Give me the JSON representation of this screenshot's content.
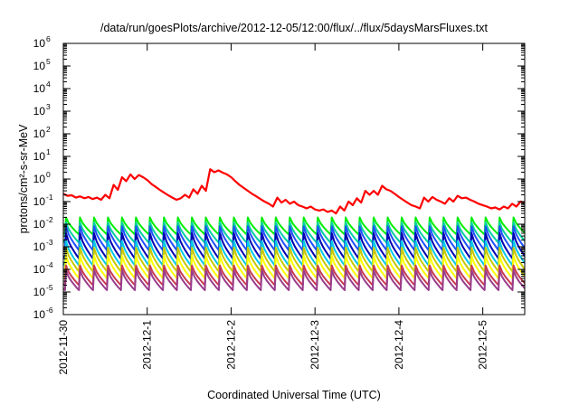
{
  "chart_data": {
    "type": "line",
    "title": "/data/run/goesPlots/archive/2012-12-05/12:00/flux/../flux/5daysMarsFluxes.txt",
    "xlabel": "Coordinated Universal Time (UTC)",
    "ylabel": "protons/cm²-s-sr-MeV",
    "yscale": "log",
    "ylim_exp": [
      -6,
      6
    ],
    "y_tick_exponents": [
      -6,
      -5,
      -4,
      -3,
      -2,
      -1,
      0,
      1,
      2,
      3,
      4,
      5,
      6
    ],
    "y_tick_base": "10",
    "xlim_days": [
      0,
      5.5
    ],
    "x_ticks": [
      {
        "day": 0,
        "label": "2012-11-30"
      },
      {
        "day": 1,
        "label": "2012-12-1"
      },
      {
        "day": 2,
        "label": "2012-12-2"
      },
      {
        "day": 3,
        "label": "2012-12-3"
      },
      {
        "day": 4,
        "label": "2012-12-4"
      },
      {
        "day": 5,
        "label": "2012-12-5"
      }
    ],
    "grid": false,
    "legend": "none",
    "sawtooth": {
      "period_days": 0.1667,
      "start_phase_days": 0.02
    },
    "series": [
      {
        "color": "#ff0000",
        "kind": "envelope",
        "points": [
          [
            0,
            0.22
          ],
          [
            0.05,
            0.18
          ],
          [
            0.1,
            0.19
          ],
          [
            0.15,
            0.15
          ],
          [
            0.2,
            0.17
          ],
          [
            0.25,
            0.14
          ],
          [
            0.3,
            0.16
          ],
          [
            0.35,
            0.13
          ],
          [
            0.4,
            0.15
          ],
          [
            0.45,
            0.12
          ],
          [
            0.5,
            0.2
          ],
          [
            0.55,
            0.14
          ],
          [
            0.6,
            0.55
          ],
          [
            0.65,
            0.33
          ],
          [
            0.7,
            1.2
          ],
          [
            0.75,
            0.8
          ],
          [
            0.8,
            1.6
          ],
          [
            0.85,
            1.0
          ],
          [
            0.9,
            1.5
          ],
          [
            0.95,
            1.2
          ],
          [
            1.0,
            0.9
          ],
          [
            1.05,
            0.6
          ],
          [
            1.1,
            0.45
          ],
          [
            1.15,
            0.33
          ],
          [
            1.2,
            0.25
          ],
          [
            1.25,
            0.19
          ],
          [
            1.3,
            0.15
          ],
          [
            1.35,
            0.12
          ],
          [
            1.4,
            0.14
          ],
          [
            1.45,
            0.2
          ],
          [
            1.5,
            0.15
          ],
          [
            1.55,
            0.35
          ],
          [
            1.6,
            0.22
          ],
          [
            1.65,
            0.5
          ],
          [
            1.7,
            0.3
          ],
          [
            1.75,
            2.7
          ],
          [
            1.8,
            2.0
          ],
          [
            1.85,
            2.4
          ],
          [
            1.9,
            1.9
          ],
          [
            1.95,
            1.6
          ],
          [
            2.0,
            1.2
          ],
          [
            2.05,
            0.8
          ],
          [
            2.1,
            0.55
          ],
          [
            2.15,
            0.4
          ],
          [
            2.2,
            0.3
          ],
          [
            2.25,
            0.22
          ],
          [
            2.3,
            0.17
          ],
          [
            2.35,
            0.13
          ],
          [
            2.4,
            0.1
          ],
          [
            2.45,
            0.08
          ],
          [
            2.5,
            0.06
          ],
          [
            2.55,
            0.15
          ],
          [
            2.6,
            0.09
          ],
          [
            2.65,
            0.12
          ],
          [
            2.7,
            0.08
          ],
          [
            2.75,
            0.1
          ],
          [
            2.8,
            0.07
          ],
          [
            2.85,
            0.06
          ],
          [
            2.9,
            0.05
          ],
          [
            2.95,
            0.06
          ],
          [
            3.0,
            0.045
          ],
          [
            3.05,
            0.04
          ],
          [
            3.1,
            0.045
          ],
          [
            3.15,
            0.035
          ],
          [
            3.2,
            0.04
          ],
          [
            3.25,
            0.03
          ],
          [
            3.3,
            0.06
          ],
          [
            3.35,
            0.04
          ],
          [
            3.4,
            0.1
          ],
          [
            3.45,
            0.07
          ],
          [
            3.5,
            0.14
          ],
          [
            3.55,
            0.09
          ],
          [
            3.6,
            0.3
          ],
          [
            3.65,
            0.2
          ],
          [
            3.7,
            0.3
          ],
          [
            3.75,
            0.2
          ],
          [
            3.8,
            0.5
          ],
          [
            3.85,
            0.35
          ],
          [
            3.9,
            0.3
          ],
          [
            3.95,
            0.22
          ],
          [
            4.0,
            0.16
          ],
          [
            4.05,
            0.12
          ],
          [
            4.1,
            0.09
          ],
          [
            4.15,
            0.07
          ],
          [
            4.2,
            0.06
          ],
          [
            4.25,
            0.05
          ],
          [
            4.3,
            0.15
          ],
          [
            4.35,
            0.1
          ],
          [
            4.4,
            0.16
          ],
          [
            4.45,
            0.12
          ],
          [
            4.5,
            0.1
          ],
          [
            4.55,
            0.08
          ],
          [
            4.6,
            0.14
          ],
          [
            4.65,
            0.1
          ],
          [
            4.7,
            0.18
          ],
          [
            4.75,
            0.14
          ],
          [
            4.8,
            0.15
          ],
          [
            4.85,
            0.12
          ],
          [
            4.9,
            0.1
          ],
          [
            4.95,
            0.08
          ],
          [
            5.0,
            0.07
          ],
          [
            5.05,
            0.06
          ],
          [
            5.1,
            0.05
          ],
          [
            5.15,
            0.055
          ],
          [
            5.2,
            0.045
          ],
          [
            5.25,
            0.06
          ],
          [
            5.3,
            0.05
          ],
          [
            5.35,
            0.08
          ],
          [
            5.4,
            0.06
          ],
          [
            5.45,
            0.1
          ],
          [
            5.5,
            0.09
          ]
        ]
      },
      {
        "color": "#00ee00",
        "kind": "sawtooth",
        "peak": 0.02,
        "trough": 0.0035
      },
      {
        "color": "#00d0a0",
        "kind": "sawtooth",
        "peak": 0.012,
        "trough": 0.0015
      },
      {
        "color": "#1e50ff",
        "kind": "sawtooth",
        "peak": 0.008,
        "trough": 0.0007
      },
      {
        "color": "#0000b0",
        "kind": "sawtooth",
        "peak": 0.004,
        "trough": 0.0003
      },
      {
        "color": "#00c8e8",
        "kind": "sawtooth",
        "peak": 0.0018,
        "trough": 0.00015
      },
      {
        "color": "#c8c800",
        "kind": "sawtooth",
        "peak": 0.0009,
        "trough": 8e-05
      },
      {
        "color": "#ffff00",
        "kind": "sawtooth",
        "peak": 0.0004,
        "trough": 4e-05
      },
      {
        "color": "#c83c50",
        "kind": "sawtooth",
        "peak": 0.00015,
        "trough": 2e-05
      },
      {
        "color": "#9a3c8c",
        "kind": "sawtooth",
        "peak": 9e-05,
        "trough": 1.2e-05
      }
    ]
  }
}
